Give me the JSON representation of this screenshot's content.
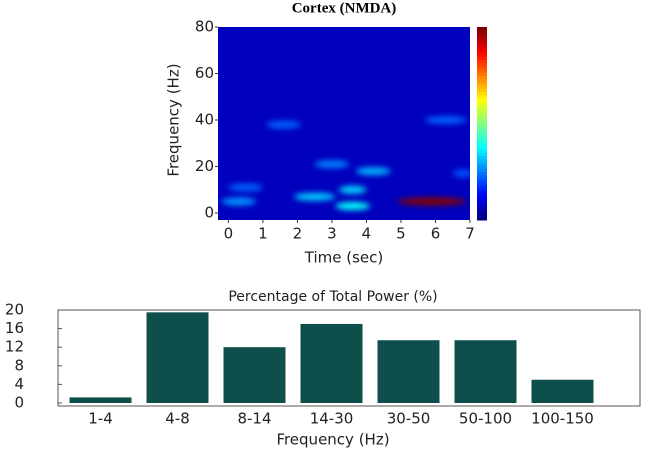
{
  "chart_data": [
    {
      "type": "heatmap",
      "title": "Cortex (NMDA)",
      "x_label": "Time (sec)",
      "y_label": "Frequency (Hz)",
      "xlim": [
        -0.3,
        7
      ],
      "xticks": [
        0,
        1,
        2,
        3,
        4,
        5,
        6,
        7
      ],
      "ylim": [
        -3,
        80
      ],
      "yticks": [
        0,
        20,
        40,
        60,
        80
      ],
      "colormap": "jet",
      "zlim": [
        0,
        1
      ],
      "colorbar": true,
      "blobs": [
        {
          "time": 5.9,
          "frequency": 5,
          "duration": 2.0,
          "power": 1.0
        },
        {
          "time": 3.6,
          "frequency": 3,
          "duration": 1.0,
          "power": 0.38
        },
        {
          "time": 2.5,
          "frequency": 7,
          "duration": 1.2,
          "power": 0.32
        },
        {
          "time": 3.6,
          "frequency": 10,
          "duration": 0.8,
          "power": 0.33
        },
        {
          "time": 4.2,
          "frequency": 18,
          "duration": 1.0,
          "power": 0.3
        },
        {
          "time": 3.0,
          "frequency": 21,
          "duration": 1.0,
          "power": 0.25
        },
        {
          "time": 1.6,
          "frequency": 38,
          "duration": 1.0,
          "power": 0.22
        },
        {
          "time": 6.3,
          "frequency": 40,
          "duration": 1.2,
          "power": 0.22
        },
        {
          "time": 0.3,
          "frequency": 5,
          "duration": 1.0,
          "power": 0.27
        },
        {
          "time": 0.5,
          "frequency": 11,
          "duration": 1.0,
          "power": 0.22
        },
        {
          "time": 6.8,
          "frequency": 17,
          "duration": 0.6,
          "power": 0.2
        }
      ]
    },
    {
      "type": "bar",
      "title": "Percentage of Total Power (%)",
      "x_label": "Frequency (Hz)",
      "categories": [
        "1-4",
        "4-8",
        "8-14",
        "14-30",
        "30-50",
        "50-100",
        "100-150"
      ],
      "values": [
        1.2,
        19.5,
        12,
        17,
        13.5,
        13.5,
        5
      ],
      "color": "#0f4f4b",
      "ylim": [
        0,
        20
      ],
      "yticks": [
        0,
        4,
        8,
        12,
        16,
        20
      ]
    }
  ]
}
